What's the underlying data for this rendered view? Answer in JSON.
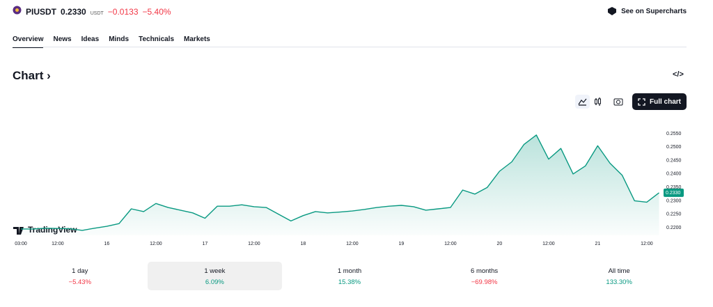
{
  "header": {
    "symbol": "PIUSDT",
    "price": "0.2330",
    "currency": "USDT",
    "change": "−0.0133",
    "change_percent": "−5.40%",
    "supercharts_link": "See on Supercharts"
  },
  "tabs": [
    "Overview",
    "News",
    "Ideas",
    "Minds",
    "Technicals",
    "Markets"
  ],
  "section_title": "Chart",
  "full_chart_button": "Full chart",
  "watermark": "TradingView",
  "chart_data": {
    "type": "area",
    "color": "#089981",
    "categories": [
      "03:00",
      null,
      null,
      "12:00",
      null,
      null,
      null,
      "16",
      null,
      null,
      null,
      "12:00",
      null,
      null,
      null,
      "17",
      null,
      null,
      null,
      "12:00",
      null,
      null,
      null,
      "18",
      null,
      null,
      null,
      "12:00",
      null,
      null,
      null,
      "19",
      null,
      null,
      null,
      "12:00",
      null,
      null,
      null,
      "20",
      null,
      null,
      null,
      "12:00",
      null,
      null,
      null,
      "21",
      null,
      null,
      null,
      "12:00",
      null
    ],
    "values": [
      0.2195,
      0.2195,
      0.2198,
      0.2197,
      0.2196,
      0.219,
      0.2198,
      0.2205,
      0.2215,
      0.227,
      0.226,
      0.229,
      0.2275,
      0.2265,
      0.2255,
      0.2235,
      0.228,
      0.228,
      0.2285,
      0.2278,
      0.2275,
      0.225,
      0.2225,
      0.2245,
      0.226,
      0.2255,
      0.2258,
      0.2262,
      0.2268,
      0.2275,
      0.228,
      0.2283,
      0.2278,
      0.2265,
      0.227,
      0.2275,
      0.234,
      0.2325,
      0.235,
      0.241,
      0.2445,
      0.251,
      0.2545,
      0.2455,
      0.2495,
      0.24,
      0.243,
      0.2505,
      0.244,
      0.2395,
      0.23,
      0.2295,
      0.233
    ],
    "last_value_label": "0.2330",
    "ylim": [
      0.2185,
      0.262
    ],
    "yticks": [
      {
        "value": 0.22,
        "label": "0.2200"
      },
      {
        "value": 0.225,
        "label": "0.2250"
      },
      {
        "value": 0.23,
        "label": "0.2300"
      },
      {
        "value": 0.235,
        "label": "0.2350"
      },
      {
        "value": 0.24,
        "label": "0.2400"
      },
      {
        "value": 0.245,
        "label": "0.2450"
      },
      {
        "value": 0.25,
        "label": "0.2500"
      },
      {
        "value": 0.255,
        "label": "0.2550"
      }
    ],
    "grid": false
  },
  "periods": [
    {
      "label": "1 day",
      "change": "−5.43%"
    },
    {
      "label": "1 week",
      "change": "6.09%"
    },
    {
      "label": "1 month",
      "change": "15.38%"
    },
    {
      "label": "6 months",
      "change": "−69.98%"
    },
    {
      "label": "All time",
      "change": "133.30%"
    }
  ],
  "selected_period": 1
}
